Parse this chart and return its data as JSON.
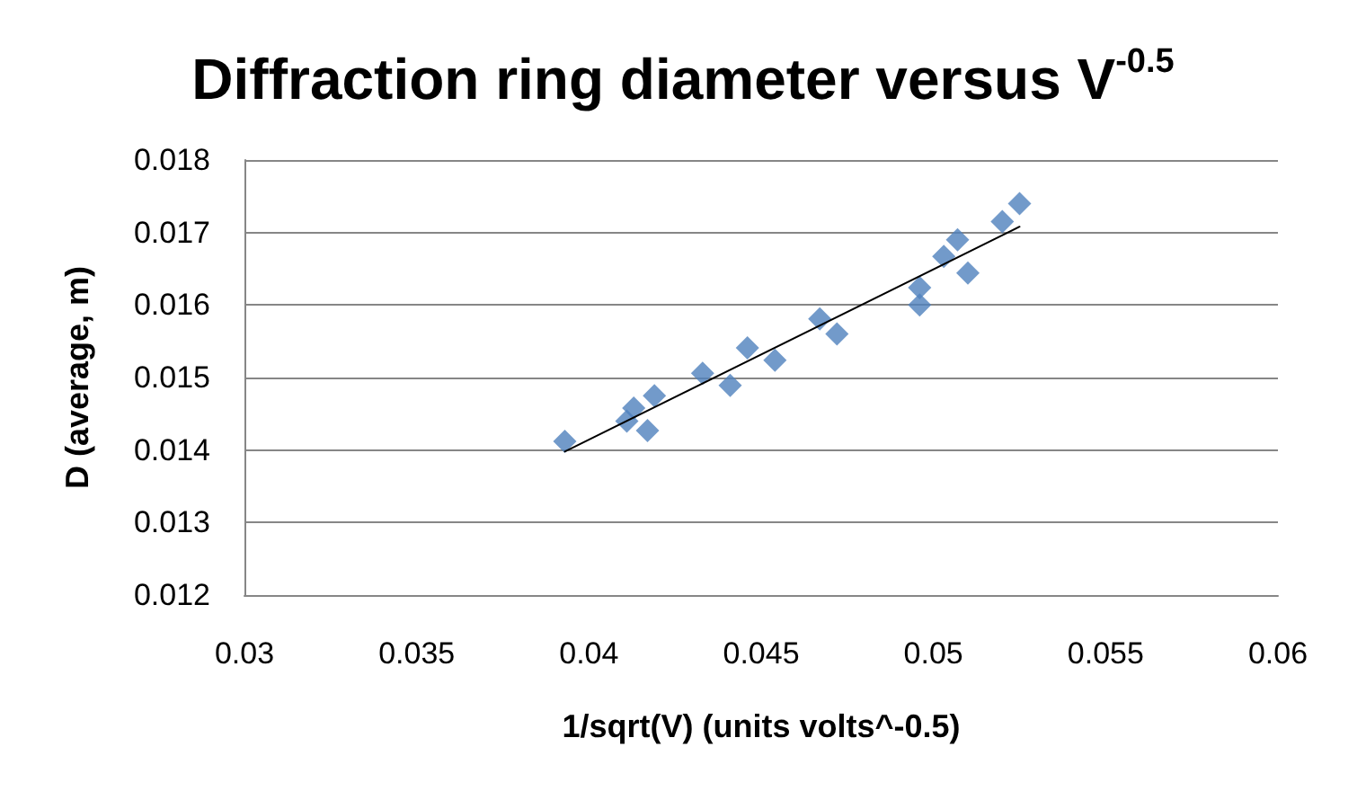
{
  "chart_data": {
    "type": "scatter",
    "title": "Diffraction ring diameter versus V$^{-0.5}$",
    "xlabel": "1/sqrt(V) (units volts^-0.5)",
    "ylabel": "D (average, m)",
    "xlim": [
      0.03,
      0.06
    ],
    "xticks": [
      0.03,
      0.035,
      0.04,
      0.045,
      0.05,
      0.055,
      0.06
    ],
    "ylim": [
      0.012,
      0.018
    ],
    "yticks": [
      0.012,
      0.013,
      0.014,
      0.015,
      0.016,
      0.017,
      0.018
    ],
    "grid": "y",
    "marker": "diamond",
    "series": [
      {
        "color": "#4f81bd",
        "x": [
          0.0393,
          0.0411,
          0.0413,
          0.0417,
          0.0419,
          0.0433,
          0.0441,
          0.0446,
          0.0454,
          0.0467,
          0.0472,
          0.0496,
          0.0496,
          0.0503,
          0.0507,
          0.051,
          0.052,
          0.0525
        ],
        "values": [
          0.01412,
          0.0144,
          0.01458,
          0.01427,
          0.01475,
          0.01506,
          0.01489,
          0.01541,
          0.01524,
          0.01581,
          0.0156,
          0.016,
          0.01624,
          0.01667,
          0.0169,
          0.01644,
          0.01715,
          0.0174
        ]
      },
      {
        "type": "line",
        "color": "#000000",
        "marker": "none",
        "line_style": "solid",
        "x": [
          0.0393,
          0.0525
        ],
        "values": [
          0.01398,
          0.01708
        ]
      }
    ]
  }
}
